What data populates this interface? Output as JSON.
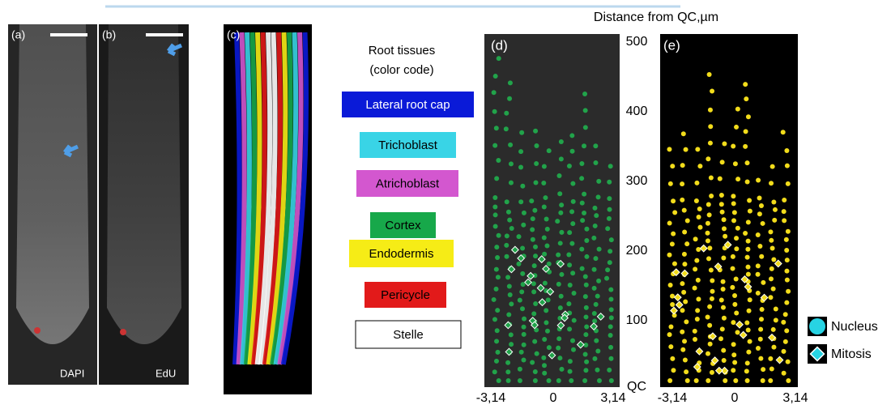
{
  "panels": {
    "a": {
      "label": "(a)",
      "caption": "DAPI"
    },
    "b": {
      "label": "(b)",
      "caption": "EdU"
    },
    "c": {
      "label": "(c)"
    },
    "d": {
      "label": "(d)"
    },
    "e": {
      "label": "(e)"
    }
  },
  "tissue_legend": {
    "title": [
      "Root tissues",
      "(color code)"
    ],
    "items": [
      {
        "label": "Lateral root cap",
        "color": "#0a1ad8",
        "text_color": "#ffffff"
      },
      {
        "label": "Trichoblast",
        "color": "#39d4e6",
        "text_color": "#000000"
      },
      {
        "label": "Atrichoblast",
        "color": "#d357cf",
        "text_color": "#000000"
      },
      {
        "label": "Cortex",
        "color": "#17a84a",
        "text_color": "#000000"
      },
      {
        "label": "Endodermis",
        "color": "#f6ec16",
        "text_color": "#000000"
      },
      {
        "label": "Pericycle",
        "color": "#e21a1a",
        "text_color": "#000000"
      },
      {
        "label": "Stelle",
        "color": "#ffffff",
        "text_color": "#000000"
      }
    ]
  },
  "distance_axis": {
    "title": "Distance from QC,µm",
    "ticks": [
      "500",
      "400",
      "300",
      "200",
      "100",
      "QC"
    ]
  },
  "angle_axis_d": {
    "ticks": [
      "-3,14",
      "0",
      "3,14"
    ]
  },
  "angle_axis_e": {
    "ticks": [
      "-3,14",
      "0",
      "3,14"
    ]
  },
  "marker_legend": [
    {
      "label": "Nucleus",
      "color": "#27d3e3"
    },
    {
      "label": "Mitosis",
      "color": "#27d3e3"
    }
  ]
}
